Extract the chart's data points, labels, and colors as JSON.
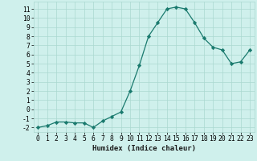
{
  "x": [
    0,
    1,
    2,
    3,
    4,
    5,
    6,
    7,
    8,
    9,
    10,
    11,
    12,
    13,
    14,
    15,
    16,
    17,
    18,
    19,
    20,
    21,
    22,
    23
  ],
  "y": [
    -2,
    -1.8,
    -1.4,
    -1.4,
    -1.5,
    -1.5,
    -2,
    -1.3,
    -0.8,
    -0.3,
    2,
    4.8,
    8,
    9.5,
    11,
    11.2,
    11,
    9.5,
    7.8,
    6.8,
    6.5,
    5,
    5.2,
    6.5
  ],
  "line_color": "#1a7a6e",
  "marker": "D",
  "marker_size": 2.2,
  "bg_color": "#cff0ec",
  "grid_color": "#aad8d0",
  "xlabel": "Humidex (Indice chaleur)",
  "xlim": [
    -0.5,
    23.5
  ],
  "ylim": [
    -2.5,
    11.8
  ],
  "xticks": [
    0,
    1,
    2,
    3,
    4,
    5,
    6,
    7,
    8,
    9,
    10,
    11,
    12,
    13,
    14,
    15,
    16,
    17,
    18,
    19,
    20,
    21,
    22,
    23
  ],
  "yticks": [
    -2,
    -1,
    0,
    1,
    2,
    3,
    4,
    5,
    6,
    7,
    8,
    9,
    10,
    11
  ],
  "xlabel_fontsize": 6.5,
  "tick_fontsize": 5.8
}
